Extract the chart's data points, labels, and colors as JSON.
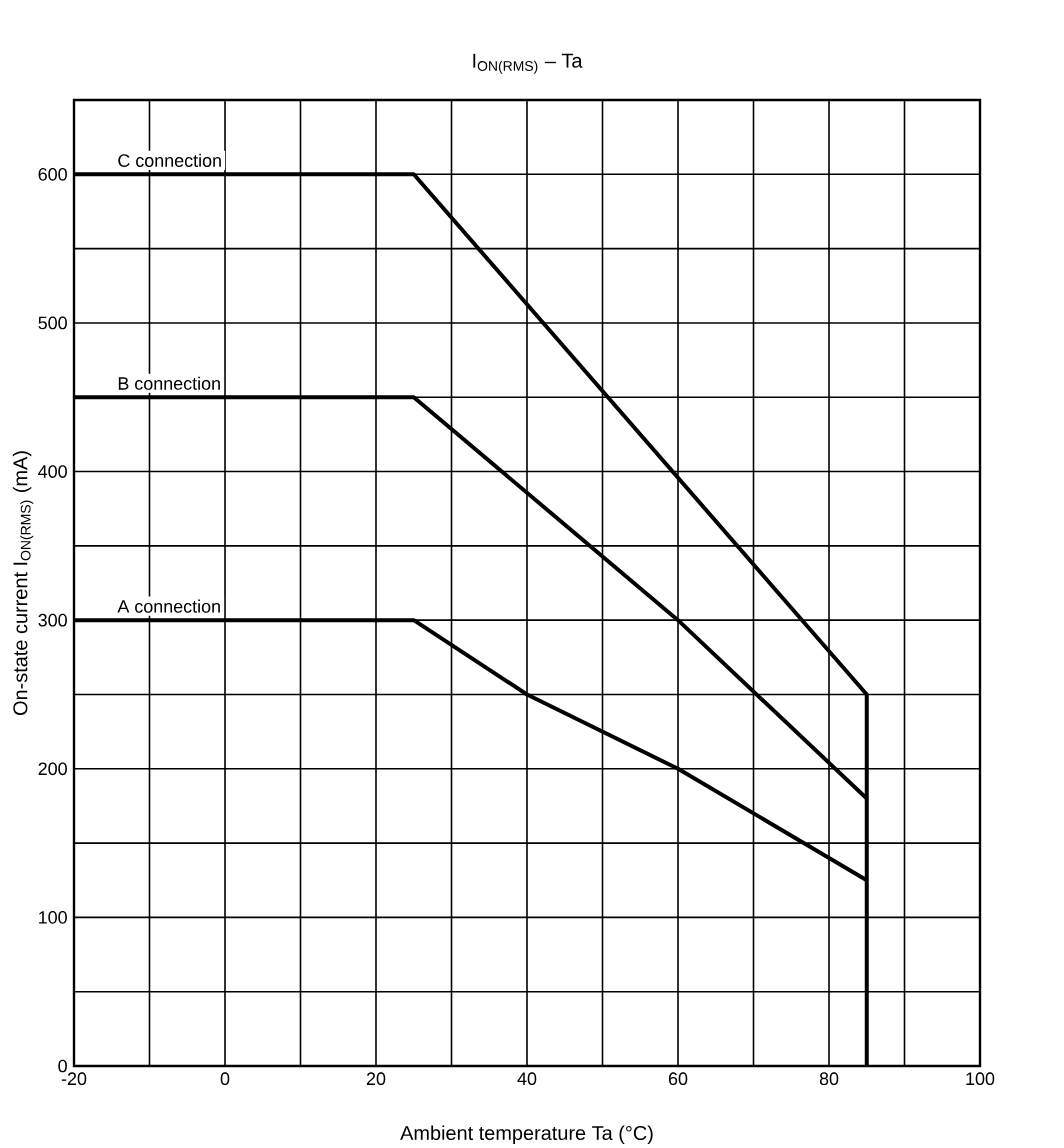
{
  "chart_data": {
    "type": "line",
    "title": "I$_{ON(RMS)}$ – Ta",
    "xlabel": "Ambient temperature   Ta   (°C)",
    "ylabel": "On-state current I$_{ON(RMS)}$    (mA)",
    "xlim": [
      -20,
      100
    ],
    "ylim": [
      0,
      650
    ],
    "xticks": [
      -20,
      {
        "value": -10,
        "label": null
      },
      0,
      {
        "value": 10,
        "label": null
      },
      20,
      {
        "value": 30,
        "label": null
      },
      40,
      {
        "value": 50,
        "label": null
      },
      60,
      {
        "value": 70,
        "label": null
      },
      80,
      {
        "value": 90,
        "label": null
      },
      100
    ],
    "yticks": [
      0,
      {
        "value": 50,
        "label": null
      },
      100,
      {
        "value": 150,
        "label": null
      },
      200,
      {
        "value": 250,
        "label": null
      },
      300,
      {
        "value": 350,
        "label": null
      },
      400,
      {
        "value": 450,
        "label": null
      },
      500,
      {
        "value": 550,
        "label": null
      },
      600,
      {
        "value": 650,
        "label": null
      }
    ],
    "grid": true,
    "marker": "none",
    "line_style": "solid",
    "series": [
      {
        "name": "C connection",
        "color": "#000000",
        "x": [
          -20,
          25,
          85,
          85
        ],
        "values": [
          600,
          600,
          250,
          0
        ]
      },
      {
        "name": "B connection",
        "color": "#000000",
        "x": [
          -20,
          25,
          60,
          85
        ],
        "values": [
          450,
          450,
          300,
          180
        ]
      },
      {
        "name": "A connection",
        "color": "#000000",
        "x": [
          -20,
          25,
          40,
          60,
          85
        ],
        "values": [
          300,
          300,
          250,
          200,
          125
        ]
      }
    ]
  }
}
